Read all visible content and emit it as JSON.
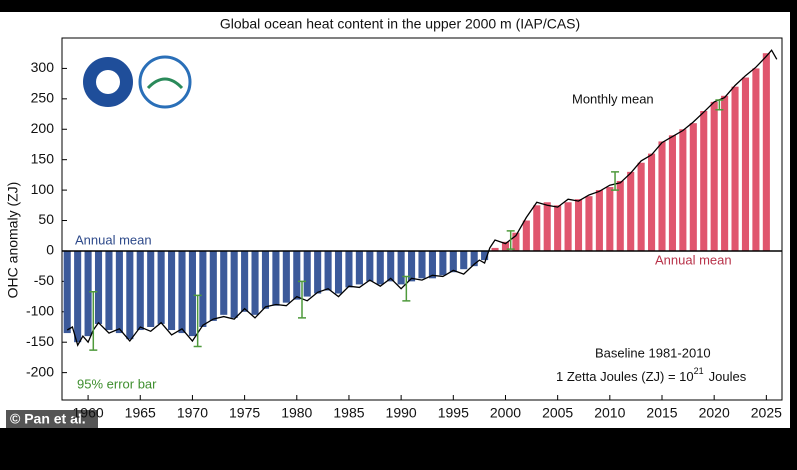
{
  "chart_data": {
    "type": "bar",
    "title": "Global ocean heat content in the upper 2000 m (IAP/CAS)",
    "y_label": "OHC anomaly (ZJ)",
    "annotations": {
      "annual_mean_left": "Annual mean",
      "annual_mean_right": "Annual mean",
      "monthly_mean": "Monthly mean",
      "error_bar": "95% error bar",
      "baseline": "Baseline 1981-2010",
      "unit_main": "1 Zetta Joules (ZJ) = 10",
      "unit_sup": "21",
      "unit_tail": "Joules",
      "credit": "© Pan et al."
    },
    "x": [
      1958,
      1959,
      1960,
      1961,
      1962,
      1963,
      1964,
      1965,
      1966,
      1967,
      1968,
      1969,
      1970,
      1971,
      1972,
      1973,
      1974,
      1975,
      1976,
      1977,
      1978,
      1979,
      1980,
      1981,
      1982,
      1983,
      1984,
      1985,
      1986,
      1987,
      1988,
      1989,
      1990,
      1991,
      1992,
      1993,
      1994,
      1995,
      1996,
      1997,
      1998,
      1999,
      2000,
      2001,
      2002,
      2003,
      2004,
      2005,
      2006,
      2007,
      2008,
      2009,
      2010,
      2011,
      2012,
      2013,
      2014,
      2015,
      2016,
      2017,
      2018,
      2019,
      2020,
      2021,
      2022,
      2023,
      2024,
      2025
    ],
    "values": [
      -135,
      -150,
      -140,
      -120,
      -130,
      -135,
      -145,
      -130,
      -125,
      -120,
      -130,
      -135,
      -140,
      -125,
      -115,
      -105,
      -110,
      -100,
      -105,
      -95,
      -90,
      -85,
      -80,
      -75,
      -70,
      -65,
      -70,
      -60,
      -55,
      -50,
      -55,
      -50,
      -55,
      -50,
      -45,
      -45,
      -40,
      -35,
      -30,
      -25,
      -15,
      5,
      15,
      30,
      50,
      75,
      80,
      75,
      80,
      85,
      90,
      100,
      105,
      115,
      130,
      145,
      160,
      180,
      190,
      200,
      210,
      230,
      245,
      255,
      270,
      285,
      300,
      325
    ],
    "negative_color": "#3c5a9a",
    "positive_color": "#e0566e",
    "line": {
      "color": "#000000",
      "x": [
        1958.0,
        1958.5,
        1959.0,
        1959.5,
        1960.0,
        1960.5,
        1961.0,
        1962.0,
        1963.0,
        1964.0,
        1965.0,
        1966.0,
        1967.0,
        1968.0,
        1969.0,
        1970.0,
        1971.0,
        1972.0,
        1973.0,
        1974.0,
        1975.0,
        1976.0,
        1977.0,
        1978.0,
        1979.0,
        1980.0,
        1981.0,
        1982.0,
        1983.0,
        1984.0,
        1985.0,
        1986.0,
        1987.0,
        1988.0,
        1989.0,
        1990.0,
        1991.0,
        1992.0,
        1993.0,
        1994.0,
        1995.0,
        1996.0,
        1997.0,
        1997.5,
        1998.0,
        1998.5,
        1999.0,
        2000.0,
        2001.0,
        2002.0,
        2003.0,
        2004.0,
        2005.0,
        2006.0,
        2007.0,
        2008.0,
        2009.0,
        2010.0,
        2011.0,
        2012.0,
        2013.0,
        2014.0,
        2015.0,
        2016.0,
        2017.0,
        2018.0,
        2019.0,
        2020.0,
        2021.0,
        2022.0,
        2023.0,
        2024.0,
        2025.0,
        2025.5,
        2026.0
      ],
      "values": [
        -130,
        -125,
        -155,
        -140,
        -150,
        -130,
        -118,
        -135,
        -128,
        -148,
        -125,
        -132,
        -118,
        -138,
        -128,
        -148,
        -122,
        -112,
        -108,
        -112,
        -95,
        -110,
        -92,
        -88,
        -90,
        -75,
        -82,
        -68,
        -62,
        -75,
        -58,
        -60,
        -48,
        -58,
        -45,
        -62,
        -45,
        -48,
        -40,
        -42,
        -32,
        -38,
        -22,
        -15,
        -20,
        5,
        18,
        12,
        25,
        55,
        80,
        75,
        72,
        85,
        82,
        92,
        98,
        108,
        112,
        128,
        148,
        158,
        178,
        188,
        198,
        212,
        228,
        245,
        252,
        272,
        288,
        302,
        320,
        330,
        315
      ]
    },
    "error_bars": [
      {
        "x": 1960.5,
        "value": -115,
        "error": 48
      },
      {
        "x": 1970.5,
        "value": -115,
        "error": 42
      },
      {
        "x": 1980.5,
        "value": -80,
        "error": 30
      },
      {
        "x": 1990.5,
        "value": -62,
        "error": 20
      },
      {
        "x": 2000.5,
        "value": 18,
        "error": 15
      },
      {
        "x": 2010.5,
        "value": 115,
        "error": 15
      },
      {
        "x": 2020.5,
        "value": 240,
        "error": 8
      }
    ],
    "error_color": "#4f9a3c",
    "xlim": [
      1957.5,
      2026.5
    ],
    "ylim": [
      -245,
      350
    ],
    "xticks": [
      1960,
      1965,
      1970,
      1975,
      1980,
      1985,
      1990,
      1995,
      2000,
      2005,
      2010,
      2015,
      2020,
      2025
    ],
    "yticks": [
      -200,
      -150,
      -100,
      -50,
      0,
      50,
      100,
      150,
      200,
      250,
      300
    ]
  }
}
